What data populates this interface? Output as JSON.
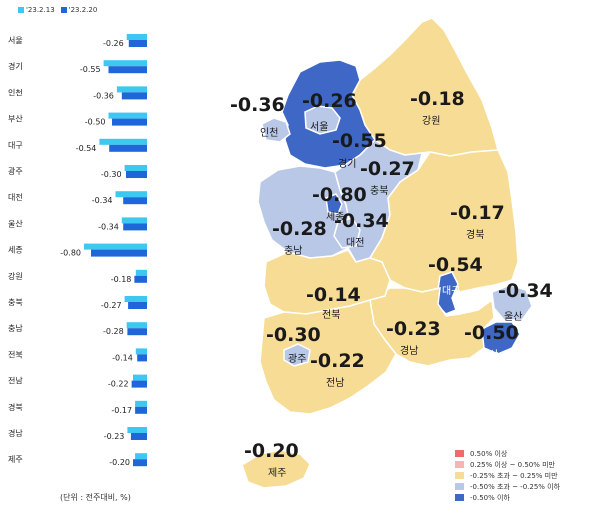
{
  "colors": {
    "prev_bar": "#3cc8f0",
    "curr_bar": "#1f66d9",
    "cat_up_050": "#f06a6a",
    "cat_up_025_050": "#f7b4b4",
    "cat_flat": "#f7dc95",
    "cat_down_025_050": "#b9c8e6",
    "cat_down_050": "#3f67c6",
    "map_label": "#1a1a1a"
  },
  "bar_legend": {
    "prev": "'23.2.13",
    "curr": "'23.2.20"
  },
  "unit_note": "(단위 : 전주대비, %)",
  "bars": [
    {
      "region": "서울",
      "value_label": "-0.26",
      "prev": 0.29,
      "curr": 0.26
    },
    {
      "region": "경기",
      "value_label": "-0.55",
      "prev": 0.62,
      "curr": 0.55
    },
    {
      "region": "인천",
      "value_label": "-0.36",
      "prev": 0.43,
      "curr": 0.36
    },
    {
      "region": "부산",
      "value_label": "-0.50",
      "prev": 0.55,
      "curr": 0.5
    },
    {
      "region": "대구",
      "value_label": "-0.54",
      "prev": 0.68,
      "curr": 0.54
    },
    {
      "region": "광주",
      "value_label": "-0.30",
      "prev": 0.32,
      "curr": 0.3
    },
    {
      "region": "대전",
      "value_label": "-0.34",
      "prev": 0.45,
      "curr": 0.34
    },
    {
      "region": "울산",
      "value_label": "-0.34",
      "prev": 0.36,
      "curr": 0.34
    },
    {
      "region": "세종",
      "value_label": "-0.80",
      "prev": 0.9,
      "curr": 0.8
    },
    {
      "region": "강원",
      "value_label": "-0.18",
      "prev": 0.16,
      "curr": 0.18
    },
    {
      "region": "충북",
      "value_label": "-0.27",
      "prev": 0.32,
      "curr": 0.27
    },
    {
      "region": "충남",
      "value_label": "-0.28",
      "prev": 0.29,
      "curr": 0.28
    },
    {
      "region": "전북",
      "value_label": "-0.14",
      "prev": 0.16,
      "curr": 0.14
    },
    {
      "region": "전남",
      "value_label": "-0.22",
      "prev": 0.2,
      "curr": 0.22
    },
    {
      "region": "경북",
      "value_label": "-0.17",
      "prev": 0.17,
      "curr": 0.17
    },
    {
      "region": "경남",
      "value_label": "-0.23",
      "prev": 0.28,
      "curr": 0.23
    },
    {
      "region": "제주",
      "value_label": "-0.20",
      "prev": 0.17,
      "curr": 0.2
    }
  ],
  "map_labels": [
    {
      "name": "인천",
      "value": "-0.36"
    },
    {
      "name": "서울",
      "value": "-0.26"
    },
    {
      "name": "경기",
      "value": "-0.55"
    },
    {
      "name": "강원",
      "value": "-0.18"
    },
    {
      "name": "충북",
      "value": "-0.27"
    },
    {
      "name": "세종",
      "value": "-0.80"
    },
    {
      "name": "대전",
      "value": "-0.34"
    },
    {
      "name": "충남",
      "value": "-0.28"
    },
    {
      "name": "경북",
      "value": "-0.17"
    },
    {
      "name": "대구",
      "value": "-0.54"
    },
    {
      "name": "울산",
      "value": "-0.34"
    },
    {
      "name": "부산",
      "value": "-0.50"
    },
    {
      "name": "전북",
      "value": "-0.14"
    },
    {
      "name": "광주",
      "value": "-0.30"
    },
    {
      "name": "전남",
      "value": "-0.22"
    },
    {
      "name": "경남",
      "value": "-0.23"
    },
    {
      "name": "제주",
      "value": "-0.20"
    }
  ],
  "map_legend": [
    {
      "label": "0.50% 이상"
    },
    {
      "label": "0.25% 이상 ~ 0.50% 미만"
    },
    {
      "label": "-0.25% 초과 ~ 0.25% 미만"
    },
    {
      "label": "-0.50% 초과 ~ -0.25% 이하"
    },
    {
      "label": "-0.50% 이하"
    }
  ]
}
